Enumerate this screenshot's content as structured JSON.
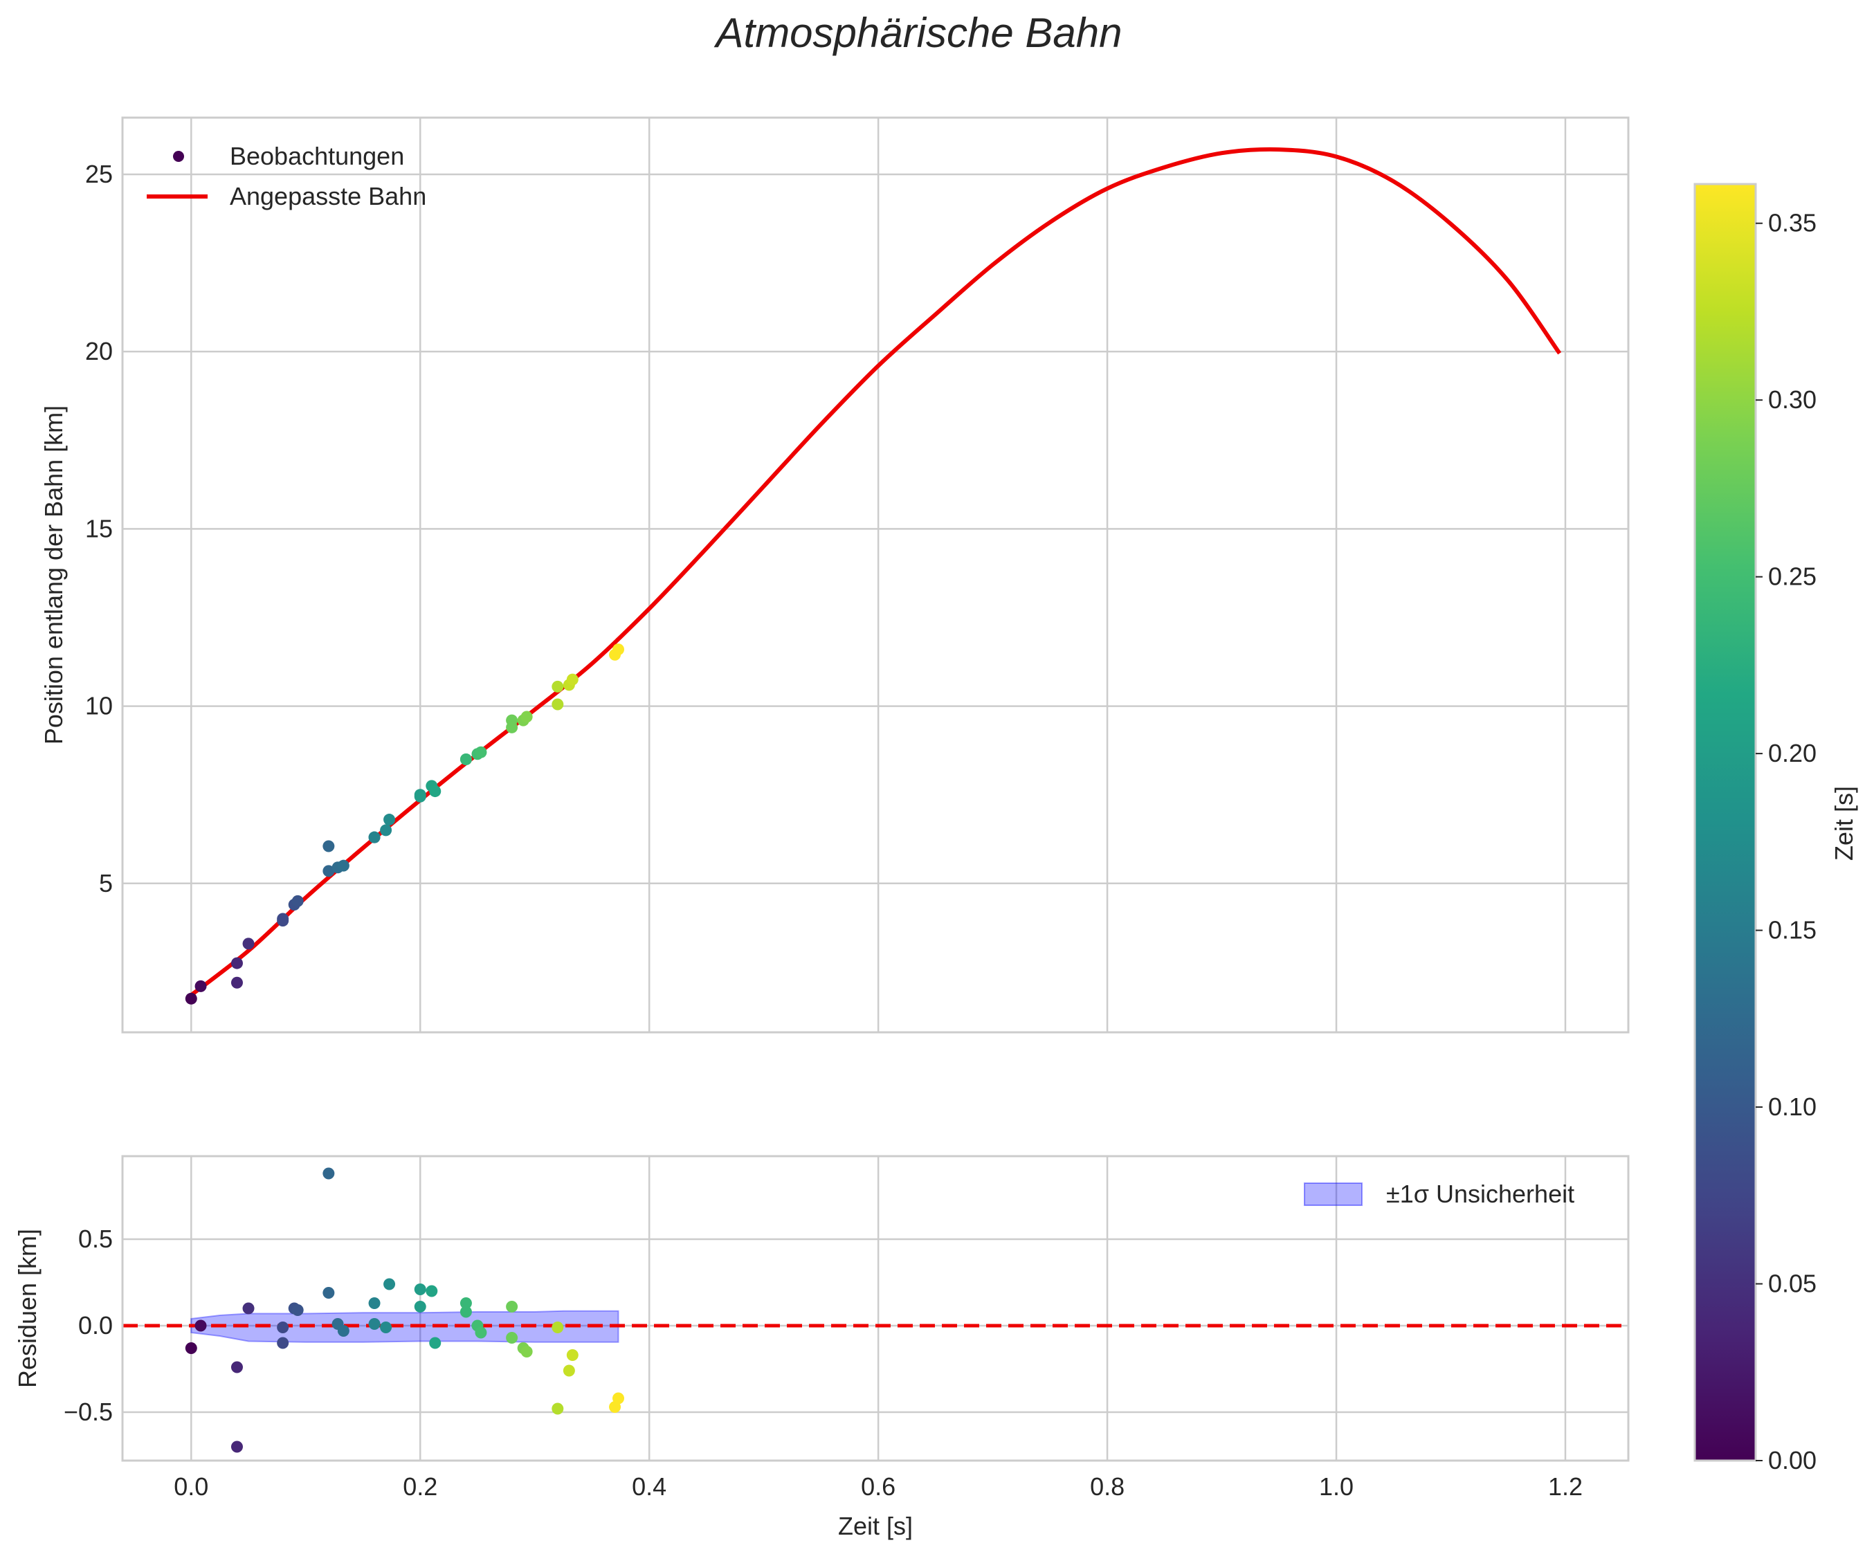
{
  "chart_data": {
    "type": "scatter",
    "title": "Atmosphärische Bahn",
    "x": [
      0.0,
      0.0083,
      0.04,
      0.04,
      0.05,
      0.08,
      0.08,
      0.09,
      0.093,
      0.12,
      0.12,
      0.128,
      0.133,
      0.16,
      0.16,
      0.17,
      0.173,
      0.2,
      0.2,
      0.21,
      0.213,
      0.24,
      0.24,
      0.25,
      0.253,
      0.28,
      0.28,
      0.29,
      0.293,
      0.32,
      0.32,
      0.33,
      0.333,
      0.37,
      0.373
    ],
    "main": {
      "ylabel": "Position entlang der Bahn [km]",
      "xlim": [
        -0.06,
        1.255
      ],
      "ylim": [
        0.8,
        26.6
      ],
      "xticks": [
        "0.0",
        "0.2",
        "0.4",
        "0.6",
        "0.8",
        "1.0",
        "1.2"
      ],
      "xtick_values": [
        0.0,
        0.2,
        0.4,
        0.6,
        0.8,
        1.0,
        1.2
      ],
      "yticks": [
        "5",
        "10",
        "15",
        "20",
        "25"
      ],
      "ytick_values": [
        5,
        10,
        15,
        20,
        25
      ],
      "observations": {
        "name": "Beobachtungen",
        "y": [
          1.75,
          2.1,
          2.2,
          2.75,
          3.3,
          4.0,
          3.95,
          4.4,
          4.5,
          6.05,
          5.35,
          5.45,
          5.5,
          6.3,
          6.3,
          6.5,
          6.8,
          7.5,
          7.45,
          7.75,
          7.6,
          8.5,
          8.5,
          8.65,
          8.7,
          9.6,
          9.4,
          9.6,
          9.7,
          10.05,
          10.55,
          10.6,
          10.75,
          11.45,
          11.6
        ]
      },
      "fit": {
        "name": "Angepasste Bahn",
        "color": "#ee0000",
        "x": [
          0.0,
          0.05,
          0.1,
          0.15,
          0.2,
          0.25,
          0.3,
          0.35,
          0.4,
          0.45,
          0.5,
          0.55,
          0.6,
          0.65,
          0.7,
          0.75,
          0.8,
          0.85,
          0.9,
          0.95,
          1.0,
          1.05,
          1.1,
          1.15,
          1.195
        ],
        "y": [
          1.85,
          3.1,
          4.6,
          6.0,
          7.35,
          8.65,
          9.9,
          11.2,
          12.75,
          14.45,
          16.2,
          17.95,
          19.6,
          21.05,
          22.45,
          23.65,
          24.6,
          25.2,
          25.6,
          25.7,
          25.5,
          24.8,
          23.6,
          22.0,
          19.95
        ]
      }
    },
    "residuals": {
      "ylabel": "Residuen [km]",
      "xlabel": "Zeit [s]",
      "xlim": [
        -0.06,
        1.255
      ],
      "ylim": [
        -0.78,
        0.98
      ],
      "xticks": [
        "0.0",
        "0.2",
        "0.4",
        "0.6",
        "0.8",
        "1.0",
        "1.2"
      ],
      "xtick_values": [
        0.0,
        0.2,
        0.4,
        0.6,
        0.8,
        1.0,
        1.2
      ],
      "yticks": [
        "−0.5",
        "0.0",
        "0.5"
      ],
      "ytick_values": [
        -0.5,
        0.0,
        0.5
      ],
      "values": [
        -0.13,
        0.0,
        -0.7,
        -0.24,
        0.1,
        -0.01,
        -0.1,
        0.1,
        0.09,
        0.88,
        0.19,
        0.01,
        -0.03,
        0.13,
        0.01,
        -0.01,
        0.24,
        0.21,
        0.11,
        0.2,
        -0.1,
        0.13,
        0.08,
        0.0,
        -0.04,
        0.11,
        -0.07,
        -0.13,
        -0.15,
        -0.48,
        -0.01,
        -0.26,
        -0.17,
        -0.47,
        -0.42
      ],
      "zero_line_color": "#ee0000",
      "uncertainty": {
        "name": "±1σ Unsicherheit",
        "color": "#0000ff",
        "x": [
          0.0,
          0.025,
          0.05,
          0.1,
          0.15,
          0.2,
          0.25,
          0.3,
          0.325,
          0.373
        ],
        "upper": [
          0.04,
          0.06,
          0.07,
          0.07,
          0.075,
          0.075,
          0.08,
          0.08,
          0.085,
          0.085
        ],
        "lower": [
          -0.04,
          -0.06,
          -0.09,
          -0.095,
          -0.095,
          -0.09,
          -0.09,
          -0.095,
          -0.095,
          -0.095
        ]
      }
    },
    "colorbar": {
      "label": "Zeit [s]",
      "colormap": "viridis",
      "range": [
        0.0,
        0.3611
      ],
      "ticks": [
        "0.00",
        "0.05",
        "0.10",
        "0.15",
        "0.20",
        "0.25",
        "0.30",
        "0.35"
      ],
      "tick_values": [
        0.0,
        0.05,
        0.1,
        0.15,
        0.2,
        0.25,
        0.3,
        0.35
      ]
    }
  }
}
